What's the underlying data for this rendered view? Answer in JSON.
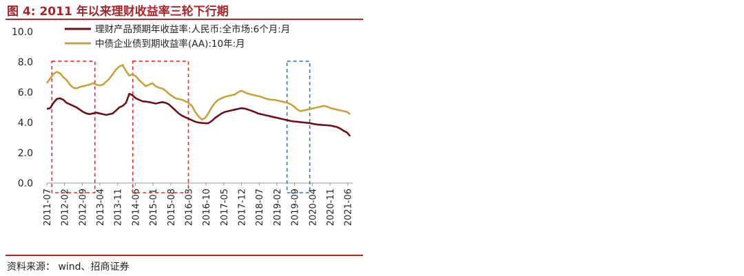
{
  "title": "图 4:  2011 年以来理财收益率三轮下行期",
  "source": "资料来源：  wind、招商证券",
  "chart_data": {
    "type": "line",
    "ylim": [
      0,
      10
    ],
    "yticks": [
      "10.0",
      "8.0",
      "6.0",
      "4.0",
      "2.0",
      "0.0"
    ],
    "xticks": [
      "2011-07",
      "2012-02",
      "2012-09",
      "2013-04",
      "2013-11",
      "2014-06",
      "2015-01",
      "2015-08",
      "2016-03",
      "2016-10",
      "2017-05",
      "2017-12",
      "2018-07",
      "2019-02",
      "2019-09",
      "2020-04",
      "2020-11",
      "2021-06"
    ],
    "legend_position": "top",
    "grid": false,
    "series": [
      {
        "name": "理财产品预期年收益率:人民币:全市场:6个月:月",
        "color": "#6b0f1a",
        "values": [
          4.9,
          4.95,
          5.3,
          5.55,
          5.6,
          5.5,
          5.3,
          5.2,
          5.1,
          5.0,
          4.85,
          4.7,
          4.6,
          4.55,
          4.6,
          4.65,
          4.6,
          4.55,
          4.5,
          4.55,
          4.6,
          4.8,
          5.0,
          5.1,
          5.3,
          5.9,
          5.8,
          5.6,
          5.5,
          5.4,
          5.38,
          5.35,
          5.3,
          5.25,
          5.3,
          5.35,
          5.3,
          5.2,
          5.0,
          4.8,
          4.6,
          4.45,
          4.35,
          4.25,
          4.15,
          4.05,
          4.0,
          3.97,
          3.95,
          3.95,
          4.1,
          4.3,
          4.45,
          4.6,
          4.7,
          4.75,
          4.8,
          4.85,
          4.9,
          4.95,
          4.92,
          4.85,
          4.78,
          4.7,
          4.6,
          4.55,
          4.5,
          4.45,
          4.4,
          4.35,
          4.3,
          4.25,
          4.2,
          4.15,
          4.1,
          4.07,
          4.05,
          4.02,
          4.0,
          3.98,
          3.95,
          3.9,
          3.87,
          3.85,
          3.83,
          3.82,
          3.8,
          3.75,
          3.7,
          3.6,
          3.45,
          3.35,
          3.1
        ]
      },
      {
        "name": "中债企业债到期收益率(AA):10年:月",
        "color": "#c6a23d",
        "values": [
          6.6,
          6.9,
          7.2,
          7.35,
          7.25,
          7.0,
          6.8,
          6.5,
          6.3,
          6.25,
          6.35,
          6.4,
          6.45,
          6.5,
          6.6,
          6.5,
          6.45,
          6.5,
          6.7,
          6.9,
          7.2,
          7.5,
          7.7,
          7.8,
          7.4,
          7.1,
          7.2,
          7.05,
          6.8,
          6.6,
          6.4,
          6.5,
          6.6,
          6.4,
          6.3,
          6.25,
          6.1,
          5.9,
          5.75,
          5.6,
          5.55,
          5.5,
          5.4,
          5.3,
          5.1,
          4.7,
          4.4,
          4.2,
          4.3,
          4.6,
          5.0,
          5.3,
          5.5,
          5.6,
          5.7,
          5.75,
          5.8,
          5.85,
          6.0,
          6.1,
          6.0,
          5.9,
          5.85,
          5.8,
          5.75,
          5.7,
          5.6,
          5.55,
          5.5,
          5.5,
          5.45,
          5.4,
          5.35,
          5.3,
          5.2,
          5.05,
          4.85,
          4.75,
          4.8,
          4.85,
          4.9,
          4.95,
          5.0,
          5.05,
          5.1,
          5.05,
          4.95,
          4.9,
          4.85,
          4.8,
          4.75,
          4.7,
          4.55
        ]
      }
    ],
    "highlight_boxes": [
      {
        "start": "2011-09",
        "end": "2013-02",
        "color": "#e8262b"
      },
      {
        "start": "2014-05",
        "end": "2016-03",
        "color": "#e8262b"
      },
      {
        "start": "2019-06",
        "end": "2020-03",
        "color": "#3a6fb0"
      }
    ]
  }
}
